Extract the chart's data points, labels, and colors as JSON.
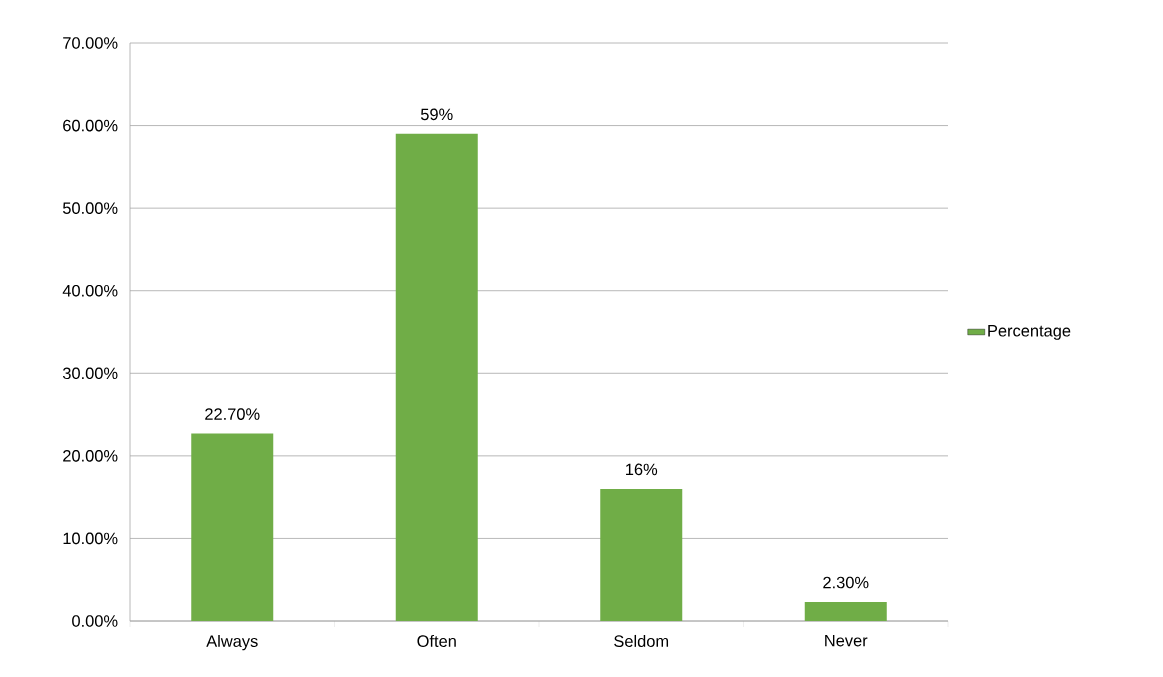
{
  "chart_data": {
    "type": "bar",
    "categories": [
      "Always",
      "Often",
      "Seldom",
      "Never"
    ],
    "series": [
      {
        "name": "Percentage",
        "color": "#70ad47",
        "values": [
          22.7,
          59,
          16,
          2.3
        ],
        "value_labels": [
          "22.70%",
          "59%",
          "16%",
          "2.30%"
        ]
      }
    ],
    "ylim": [
      0,
      70
    ],
    "yticks": [
      {
        "value": 0,
        "label": "0.00%"
      },
      {
        "value": 10,
        "label": "10.00%"
      },
      {
        "value": 20,
        "label": "20.00%"
      },
      {
        "value": 30,
        "label": "30.00%"
      },
      {
        "value": 40,
        "label": "40.00%"
      },
      {
        "value": 50,
        "label": "50.00%"
      },
      {
        "value": 60,
        "label": "60.00%"
      },
      {
        "value": 70,
        "label": "70.00%"
      }
    ],
    "grid": "y",
    "legend": "right"
  }
}
